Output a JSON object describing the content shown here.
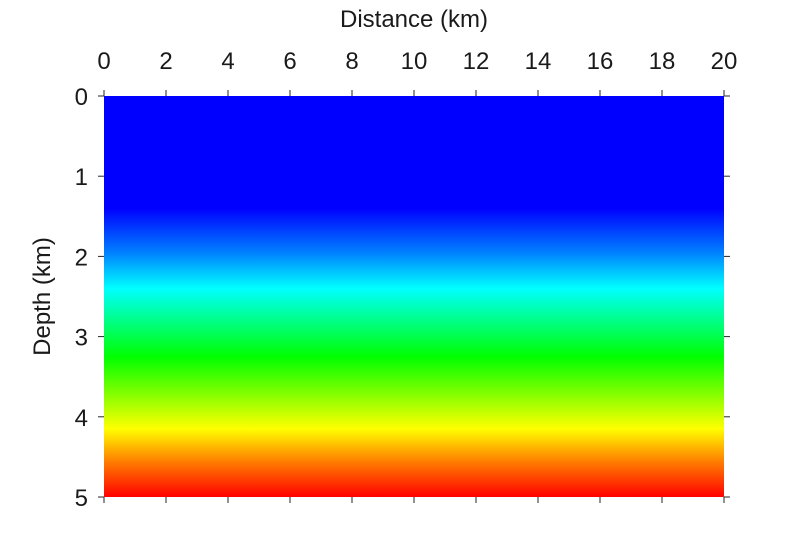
{
  "chart_data": {
    "type": "heatmap",
    "title": "",
    "xlabel": "Distance (km)",
    "ylabel": "Depth (km)",
    "xlim": [
      0,
      20
    ],
    "ylim": [
      0,
      5
    ],
    "x_axis_position": "top",
    "y_axis_reversed": true,
    "x_ticks": [
      0,
      2,
      4,
      6,
      8,
      10,
      12,
      14,
      16,
      18,
      20
    ],
    "y_ticks": [
      0,
      1,
      2,
      3,
      4,
      5
    ],
    "grid": false,
    "colorbar": false,
    "colormap": "jet",
    "field_varies_along": "depth",
    "color_profile": [
      {
        "depth": 0.0,
        "color": "#0000ff"
      },
      {
        "depth": 1.4,
        "color": "#0000ff"
      },
      {
        "depth": 1.95,
        "color": "#0080ff"
      },
      {
        "depth": 2.4,
        "color": "#00ffff"
      },
      {
        "depth": 3.25,
        "color": "#00ff00"
      },
      {
        "depth": 4.15,
        "color": "#ffff00"
      },
      {
        "depth": 4.55,
        "color": "#ff8000"
      },
      {
        "depth": 5.0,
        "color": "#ff0000"
      }
    ]
  }
}
